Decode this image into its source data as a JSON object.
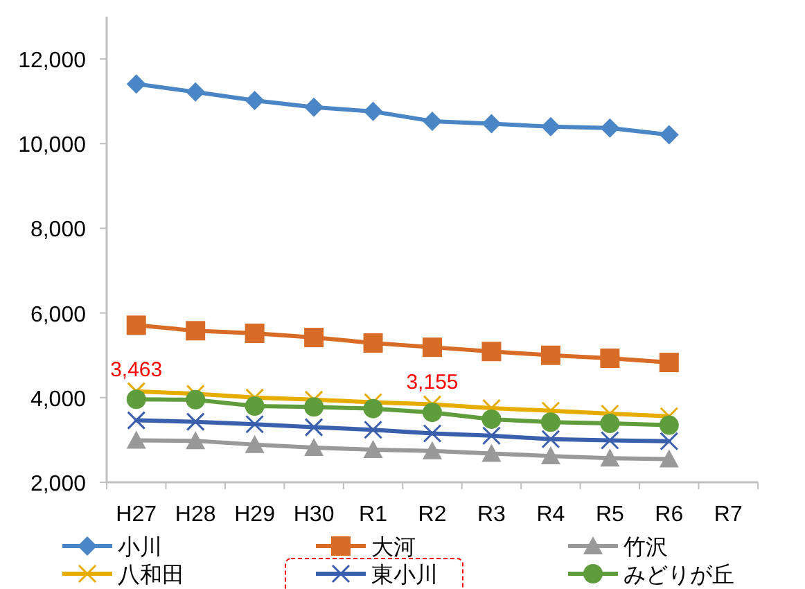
{
  "chart_data": {
    "type": "line",
    "categories": [
      "H27",
      "H28",
      "H29",
      "H30",
      "R1",
      "R2",
      "R3",
      "R4",
      "R5",
      "R6",
      "R7"
    ],
    "series": [
      {
        "name": "小川",
        "color": "#4a86c5",
        "marker": "diamond",
        "values": [
          11410,
          11220,
          11020,
          10860,
          10760,
          10530,
          10470,
          10400,
          10370,
          10210,
          null
        ]
      },
      {
        "name": "大河",
        "color": "#d86c27",
        "marker": "square",
        "values": [
          5710,
          5580,
          5520,
          5420,
          5290,
          5190,
          5090,
          5000,
          4930,
          4830,
          null
        ]
      },
      {
        "name": "竹沢",
        "color": "#999999",
        "marker": "triangle",
        "values": [
          2990,
          2980,
          2890,
          2820,
          2770,
          2740,
          2680,
          2620,
          2570,
          2550,
          null
        ]
      },
      {
        "name": "八和田",
        "color": "#e6ac00",
        "marker": "cross",
        "values": [
          4150,
          4090,
          4000,
          3950,
          3890,
          3840,
          3750,
          3690,
          3620,
          3560,
          null
        ]
      },
      {
        "name": "東小川",
        "color": "#3a5fad",
        "marker": "cross",
        "values": [
          3463,
          3430,
          3370,
          3300,
          3240,
          3155,
          3100,
          3020,
          2990,
          2970,
          null
        ]
      },
      {
        "name": "みどりが丘",
        "color": "#5e9c3c",
        "marker": "circle",
        "values": [
          3960,
          3950,
          3800,
          3780,
          3740,
          3650,
          3490,
          3420,
          3390,
          3350,
          null
        ]
      }
    ],
    "ylim": [
      2000,
      13000
    ],
    "yticks": [
      {
        "value": 2000,
        "label": "2,000"
      },
      {
        "value": 4000,
        "label": "4,000"
      },
      {
        "value": 6000,
        "label": "6,000"
      },
      {
        "value": 8000,
        "label": "8,000"
      },
      {
        "value": 10000,
        "label": "10,000"
      },
      {
        "value": 12000,
        "label": "12,000"
      }
    ],
    "annotations": [
      {
        "text": "3,463",
        "x": "H27",
        "y": 3463
      },
      {
        "text": "3,155",
        "x": "R2",
        "y": 3155
      }
    ],
    "legend": "bottom"
  }
}
